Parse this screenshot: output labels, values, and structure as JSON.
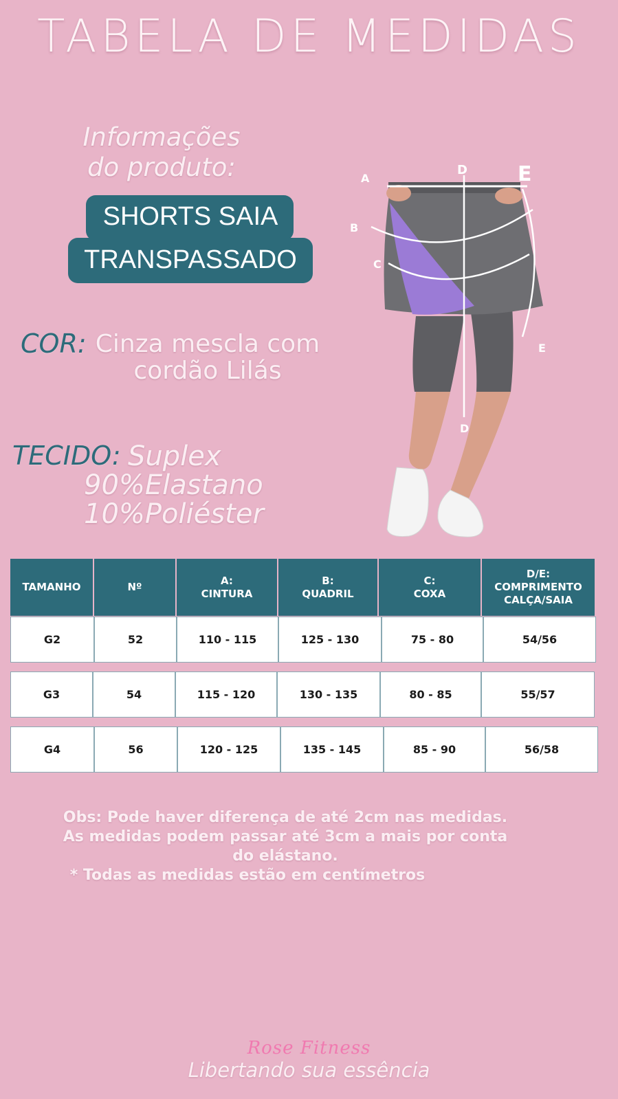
{
  "title": "TABELA DE MEDIDAS",
  "info": {
    "heading_line1": "Informações",
    "heading_line2": "do produto:",
    "product_line1": "SHORTS SAIA",
    "product_line2": "TRANSPASSADO"
  },
  "cor": {
    "label": "COR:",
    "value_line1": "Cinza mescla com",
    "value_line2": "cordão  Lilás"
  },
  "tecido": {
    "label": "TECIDO:",
    "line1": "Suplex",
    "line2": "90%Elastano",
    "line3": "10%Poliéster"
  },
  "figure": {
    "labels": {
      "a": "A",
      "b": "B",
      "c": "C",
      "d_top": "D",
      "d_bottom": "D",
      "e_top": "E",
      "e_side": "E"
    },
    "colors": {
      "skirt": "#6e6e72",
      "panel": "#9b7bd6",
      "leggings": "#5e5e62",
      "skin": "#d8a08a",
      "shoe": "#f4f4f4"
    }
  },
  "table": {
    "headers": [
      "TAMANHO",
      "Nº",
      "A:\nCINTURA",
      "B:\nQUADRIL",
      "C:\nCOXA",
      "D/E:\nCOMPRIMENTO\nCALÇA/SAIA"
    ],
    "rows": [
      [
        "G2",
        "52",
        "110 - 115",
        "125 - 130",
        "75 - 80",
        "54/56"
      ],
      [
        "G3",
        "54",
        "115 - 120",
        "130 - 135",
        "80 - 85",
        "55/57"
      ],
      [
        "G4",
        "56",
        "120 - 125",
        "135 - 145",
        "85 - 90",
        "56/58"
      ]
    ]
  },
  "obs": {
    "line1": "Obs: Pode haver diferença de até 2cm nas medidas.",
    "line2": "As medidas podem passar até 3cm a mais por conta",
    "line3": "do elástano.",
    "line4": "* Todas as medidas estão em centímetros"
  },
  "footer": {
    "brand": "Rose Fitness",
    "slogan": "Libertando sua essência"
  },
  "colors": {
    "background": "#e8b4c8",
    "accent": "#2d6b7a",
    "text_light": "#fbeef3"
  }
}
